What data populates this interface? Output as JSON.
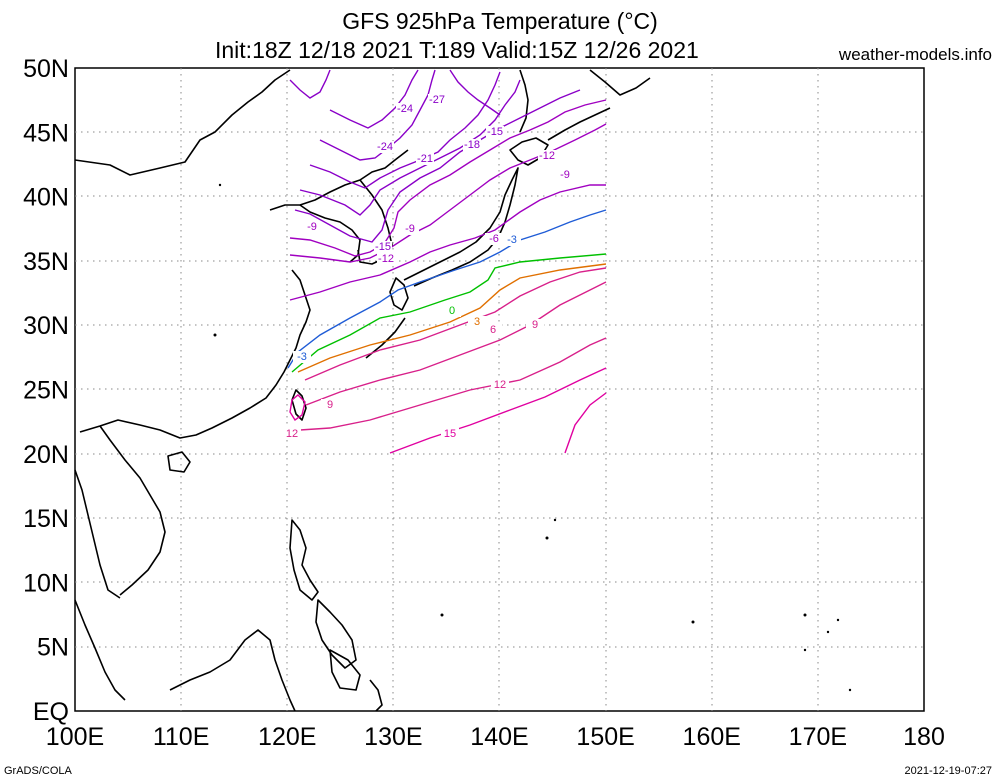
{
  "header": {
    "title_line1": "GFS 925hPa Temperature (°C)",
    "title_line2": "Init:18Z 12/18 2021 T:189 Valid:15Z 12/26 2021",
    "site": "weather-models.info"
  },
  "footer": {
    "credit": "GrADS/COLA",
    "timestamp": "2021-12-19-07:27"
  },
  "map": {
    "lat_ticks": [
      "50N",
      "45N",
      "40N",
      "35N",
      "30N",
      "25N",
      "20N",
      "15N",
      "10N",
      "5N",
      "EQ"
    ],
    "lon_ticks": [
      "100E",
      "110E",
      "120E",
      "130E",
      "140E",
      "150E",
      "160E",
      "170E",
      "180"
    ],
    "lat_range": [
      0,
      50
    ],
    "lon_range": [
      100,
      180
    ],
    "grid": "dotted",
    "data_extent": {
      "lon": [
        120,
        150
      ],
      "lat": [
        20,
        50
      ]
    },
    "contour_labels": [
      "-27",
      "-24",
      "-21",
      "-18",
      "-15",
      "-12",
      "-9",
      "-6",
      "-3",
      "0",
      "3",
      "6",
      "9",
      "12",
      "15"
    ],
    "isotherm_colors": {
      "very_cold": "#8a00c8",
      "cold": "#a000c0",
      "minus3": "#1f5cd6",
      "zero": "#00c000",
      "plus3": "#e07000",
      "warm": "#d8208a",
      "hot": "#e000a0"
    }
  }
}
